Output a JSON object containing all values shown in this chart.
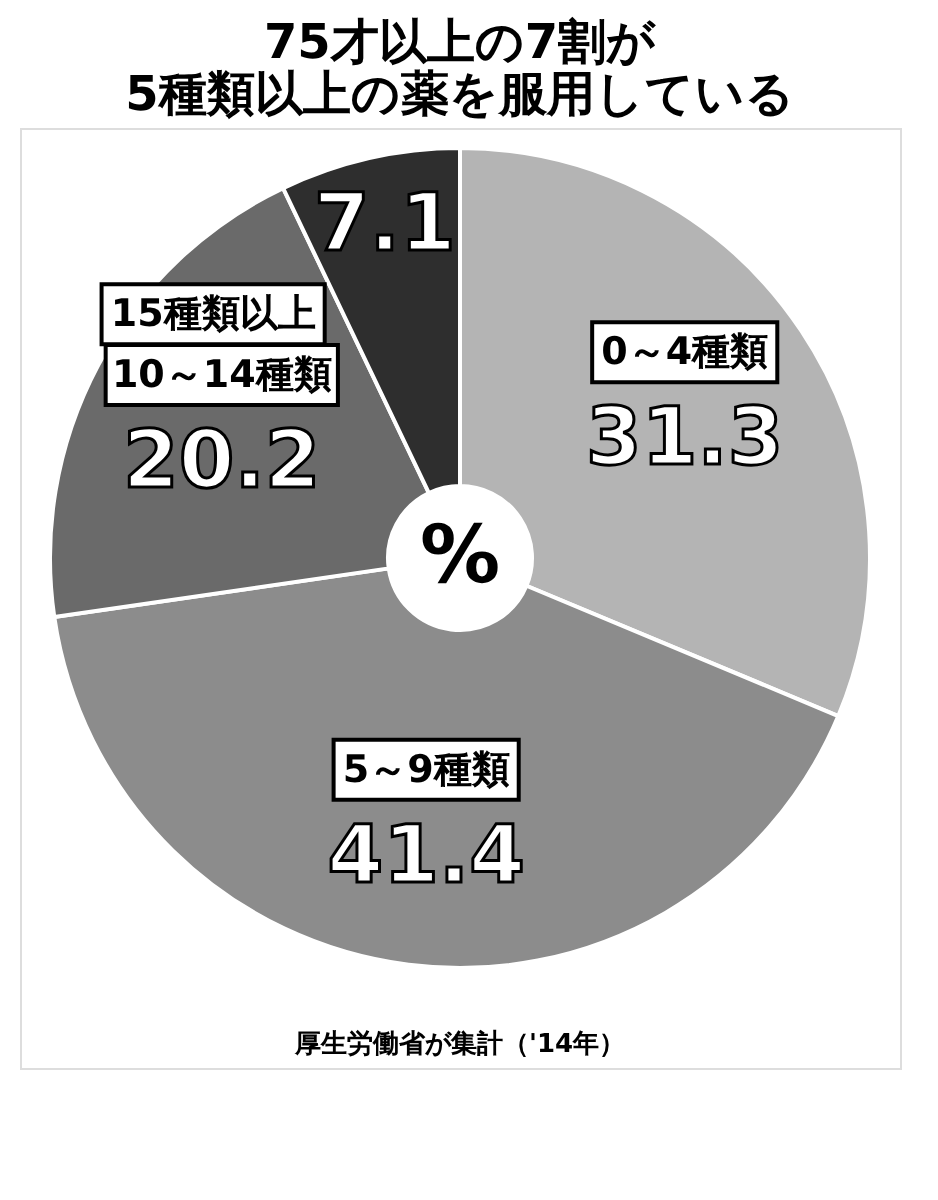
{
  "chart_data": {
    "type": "donut",
    "title": "75才以上の7割が\n5種類以上の薬を服用している",
    "categories": [
      "0～4種類",
      "5～9種類",
      "10～14種類",
      "15種類以上"
    ],
    "values": [
      31.3,
      41.4,
      20.2,
      7.1
    ],
    "colors": [
      "#b4b4b4",
      "#8c8c8c",
      "#6a6a6a",
      "#2e2e2e"
    ],
    "data_labels": true,
    "legend": false,
    "annotations": [
      "%",
      "厚生労働省が集計（'14年）"
    ]
  }
}
